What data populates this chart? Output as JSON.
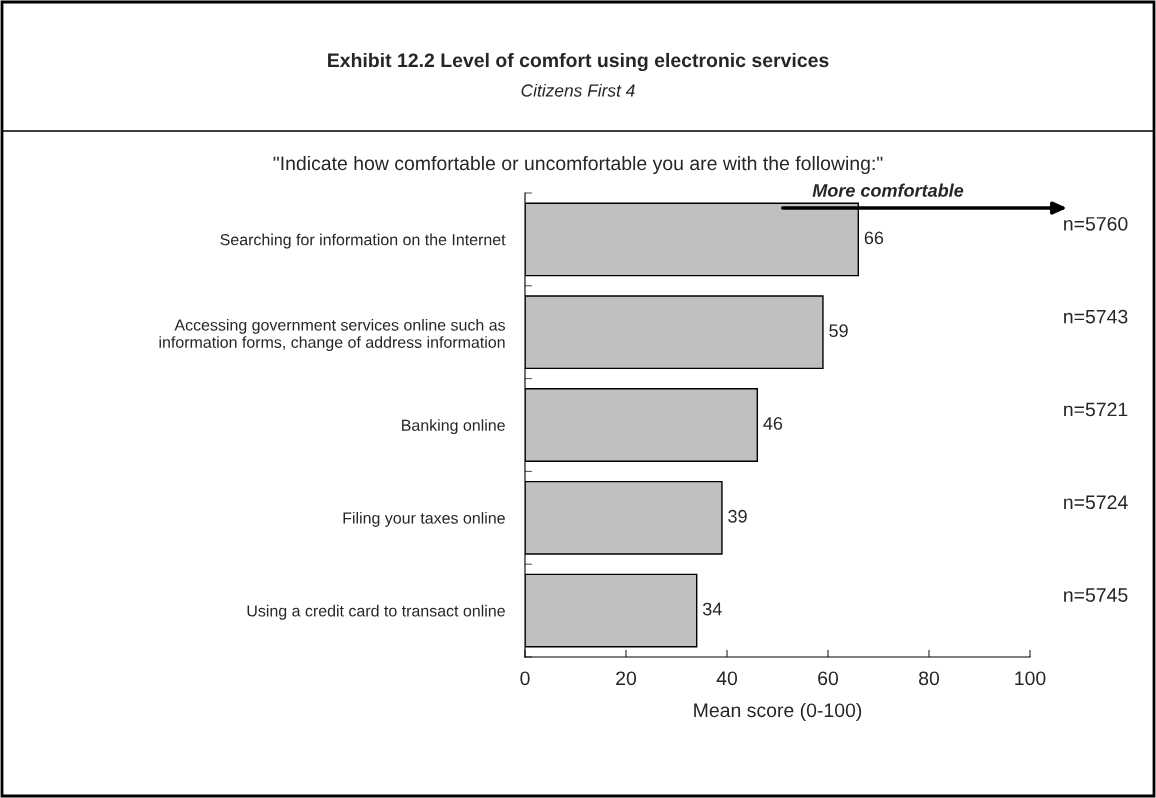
{
  "chart_data": {
    "type": "bar",
    "orientation": "horizontal",
    "title": "Exhibit 12.2 Level of comfort using electronic services",
    "subtitle": "Citizens First 4",
    "categories": [
      "Searching for information on the Internet",
      "Accessing government services online such as\ninformation forms, change of address information",
      "Banking online",
      "Filing your taxes online",
      "Using a credit card to transact online"
    ],
    "values": [
      66,
      59,
      46,
      39,
      34
    ],
    "color": "#c0c0c0",
    "data_labels": true,
    "xlabel": "Mean score (0-100)",
    "xlim": [
      0,
      100
    ],
    "xticks": [
      0,
      20,
      40,
      60,
      80,
      100
    ],
    "grid": false,
    "legend": false,
    "annotations": [
      "\"Indicate how comfortable or uncomfortable you are with the following:\"",
      "More comfortable",
      "n=5760",
      "n=5743",
      "n=5721",
      "n=5724",
      "n=5745"
    ]
  }
}
